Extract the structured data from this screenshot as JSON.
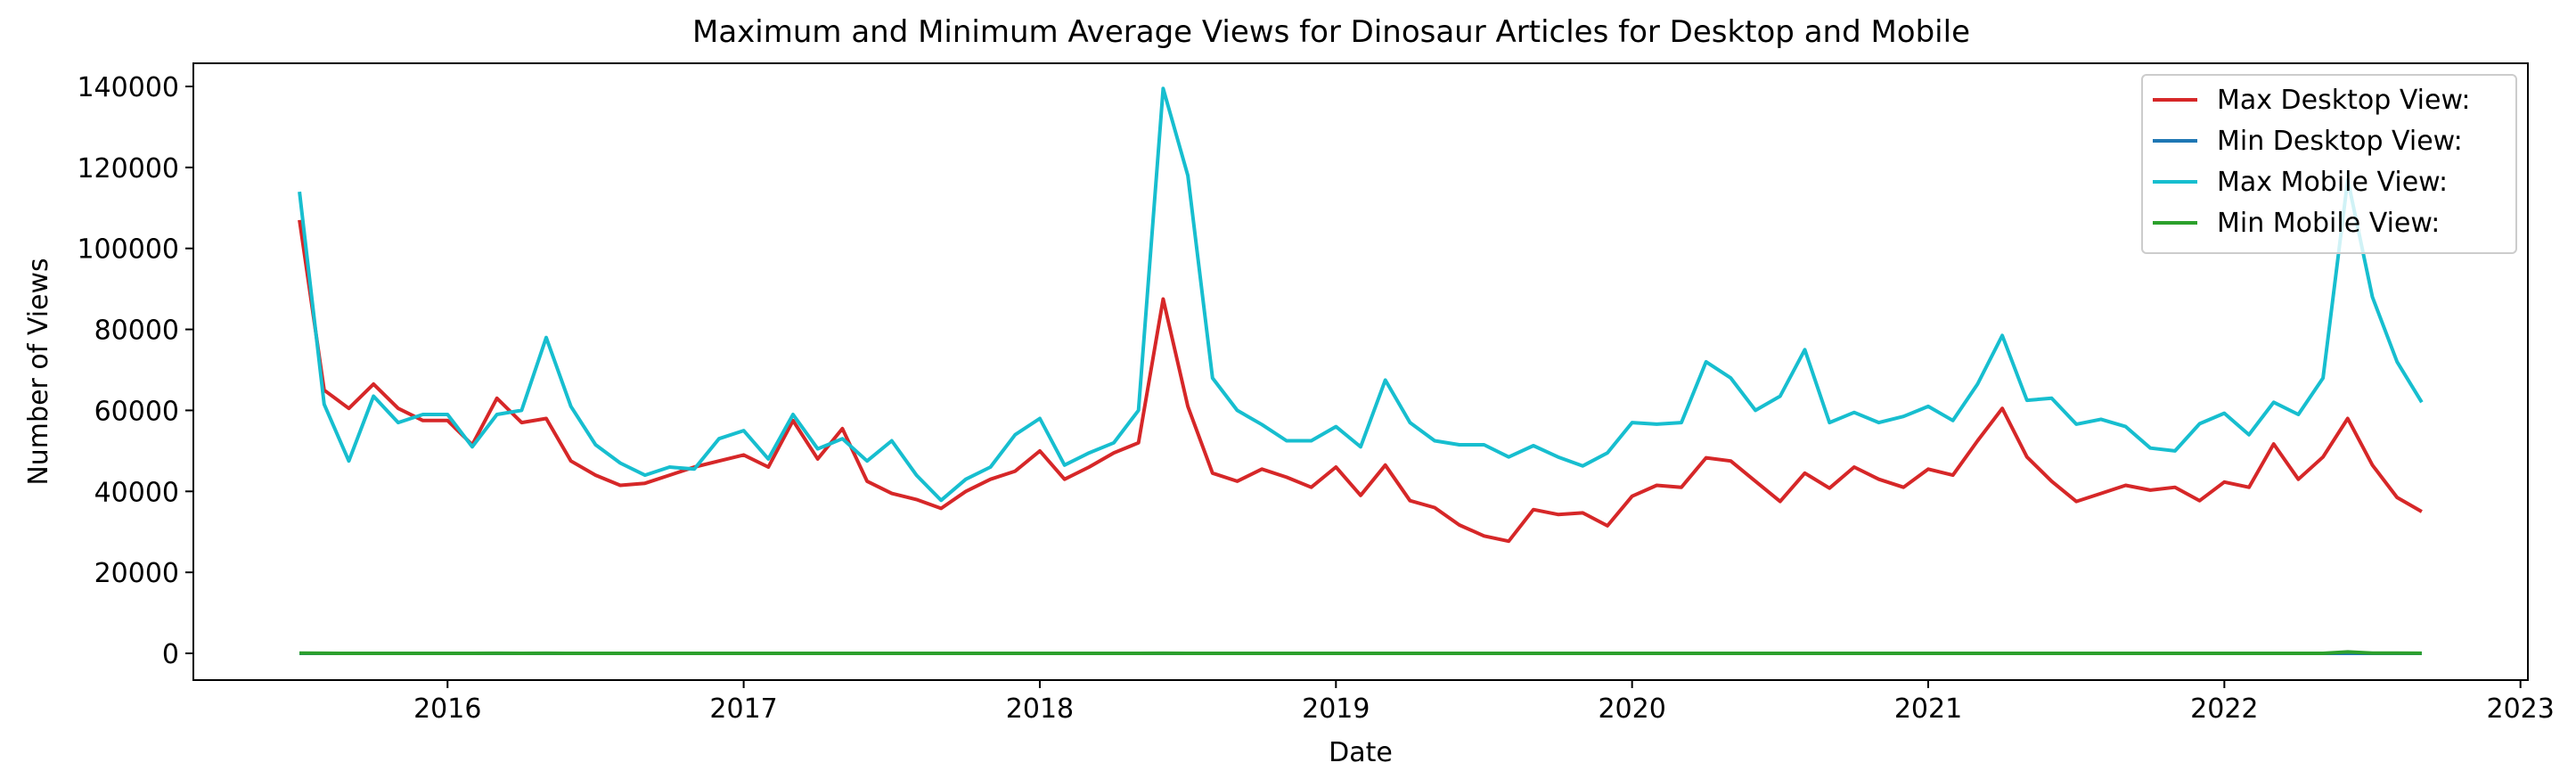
{
  "chart_data": {
    "type": "line",
    "title": "Maximum and Minimum Average Views for Dinosaur Articles for Desktop and Mobile",
    "xlabel": "Date",
    "ylabel": "Number of  Views",
    "x_start": "2015-07",
    "x_frequency": "monthly",
    "xlim": [
      "2015-01",
      "2023-01"
    ],
    "ylim": [
      0,
      140000
    ],
    "x_ticks": [
      "2016",
      "2017",
      "2018",
      "2019",
      "2020",
      "2021",
      "2022",
      "2023"
    ],
    "y_ticks": [
      0,
      20000,
      40000,
      60000,
      80000,
      100000,
      120000,
      140000
    ],
    "grid": false,
    "legend_position": "top-right",
    "series": [
      {
        "name": "Max Desktop View:",
        "color": "#d62728",
        "values": [
          107000,
          65000,
          60500,
          66500,
          60500,
          57500,
          57500,
          51500,
          63000,
          57000,
          58000,
          47500,
          44000,
          41500,
          42000,
          44000,
          46000,
          47500,
          49000,
          46000,
          57500,
          48000,
          55500,
          42500,
          39500,
          38000,
          35800,
          40000,
          43000,
          45000,
          50000,
          43000,
          46000,
          49500,
          52000,
          87500,
          61000,
          44500,
          42500,
          45500,
          43500,
          41000,
          46000,
          39000,
          46500,
          37700,
          36000,
          31700,
          29000,
          27700,
          35500,
          34300,
          34700,
          31500,
          38800,
          41500,
          41000,
          48300,
          47500,
          42500,
          37500,
          44500,
          40800,
          46000,
          43000,
          41000,
          45500,
          44000,
          52500,
          60500,
          48500,
          42500,
          37500,
          39500,
          41500,
          40300,
          41000,
          37700,
          42300,
          41000,
          51700,
          43000,
          48500,
          58000,
          46500,
          38500,
          35000
        ]
      },
      {
        "name": "Min Desktop View:",
        "color": "#1f77b4",
        "values": [
          1,
          1,
          1,
          1,
          1,
          1,
          1,
          1,
          1,
          1,
          1,
          1,
          1,
          1,
          1,
          1,
          1,
          1,
          1,
          1,
          1,
          1,
          1,
          1,
          1,
          1,
          1,
          1,
          1,
          1,
          1,
          1,
          1,
          1,
          1,
          1,
          1,
          1,
          1,
          1,
          1,
          1,
          1,
          1,
          1,
          1,
          1,
          1,
          1,
          1,
          1,
          1,
          1,
          1,
          1,
          1,
          1,
          1,
          1,
          1,
          1,
          1,
          1,
          1,
          1,
          1,
          1,
          1,
          1,
          1,
          1,
          1,
          1,
          1,
          1,
          1,
          1,
          1,
          1,
          1,
          1,
          1,
          1,
          1,
          1,
          1,
          1
        ]
      },
      {
        "name": "Max Mobile View:",
        "color": "#17becf",
        "values": [
          114000,
          61500,
          47500,
          63500,
          57000,
          59000,
          59000,
          51000,
          59000,
          60000,
          78000,
          61000,
          51500,
          47000,
          44000,
          46000,
          45500,
          53000,
          55000,
          48000,
          59000,
          50500,
          53000,
          47500,
          52500,
          44000,
          37800,
          43000,
          46000,
          54000,
          58000,
          46500,
          49500,
          52000,
          60000,
          139500,
          118000,
          68000,
          60000,
          56500,
          52500,
          52500,
          56000,
          51000,
          67500,
          57000,
          52500,
          51500,
          51500,
          48500,
          51300,
          48500,
          46300,
          49500,
          57000,
          56600,
          57000,
          72000,
          68000,
          60000,
          63500,
          75000,
          57000,
          59500,
          57000,
          58500,
          61000,
          57500,
          66500,
          78500,
          62500,
          63000,
          56600,
          57800,
          56000,
          50700,
          50000,
          56700,
          59300,
          54000,
          62000,
          59000,
          68000,
          117000,
          88000,
          72000,
          62000
        ]
      },
      {
        "name": "Min Mobile View:",
        "color": "#2ca02c",
        "values": [
          60,
          20,
          10,
          10,
          10,
          10,
          10,
          10,
          20,
          10,
          20,
          10,
          10,
          10,
          10,
          10,
          10,
          10,
          10,
          10,
          10,
          10,
          10,
          10,
          10,
          10,
          10,
          10,
          10,
          10,
          10,
          10,
          10,
          10,
          10,
          20,
          10,
          10,
          10,
          10,
          10,
          10,
          10,
          10,
          10,
          10,
          10,
          10,
          10,
          10,
          10,
          10,
          10,
          10,
          10,
          10,
          10,
          10,
          10,
          10,
          10,
          10,
          10,
          10,
          10,
          10,
          10,
          10,
          10,
          10,
          10,
          10,
          10,
          10,
          10,
          10,
          10,
          10,
          10,
          10,
          10,
          10,
          10,
          350,
          60,
          40,
          30
        ]
      }
    ]
  }
}
